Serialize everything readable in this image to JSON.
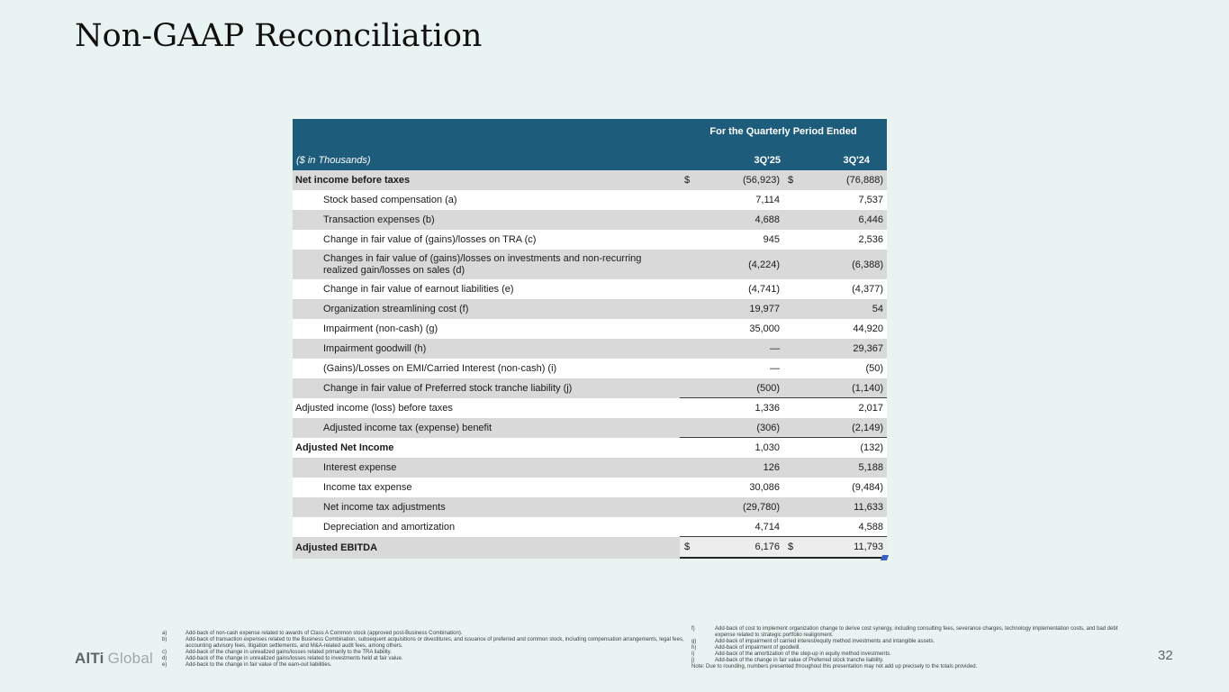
{
  "slide": {
    "title": "Non-GAAP Reconciliation",
    "page_number": "32",
    "logo": {
      "bold": "AlTi",
      "light": "Global"
    }
  },
  "colors": {
    "background": "#E9F4F2",
    "header_teal": "#1E5C7C",
    "row_gray": "#D9D9D9",
    "row_white": "#FFFFFF",
    "blue_mark": "#3B5FC0"
  },
  "table": {
    "header": {
      "period_title": "For the Quarterly Period Ended",
      "units_label": "($ in Thousands)",
      "col1": "3Q'25",
      "col2": "3Q'24"
    },
    "rows": [
      {
        "label": "Net income before taxes",
        "bold": true,
        "indent": false,
        "dollar": true,
        "v1": "(56,923)",
        "v2": "(76,888)",
        "shade": "gray"
      },
      {
        "label": "Stock based compensation (a)",
        "indent": true,
        "v1": "7,114",
        "v2": "7,537",
        "shade": "white"
      },
      {
        "label": "Transaction expenses (b)",
        "indent": true,
        "v1": "4,688",
        "v2": "6,446",
        "shade": "gray"
      },
      {
        "label": "Change in fair value of (gains)/losses on TRA (c)",
        "indent": true,
        "v1": "945",
        "v2": "2,536",
        "shade": "white"
      },
      {
        "label": "Changes in fair value of (gains)/losses on investments and non-recurring",
        "label2": "realized gain/losses on sales (d)",
        "indent": true,
        "tall": true,
        "v1": "(4,224)",
        "v2": "(6,388)",
        "shade": "gray"
      },
      {
        "label": "Change in fair value of earnout liabilities (e)",
        "indent": true,
        "v1": "(4,741)",
        "v2": "(4,377)",
        "shade": "white"
      },
      {
        "label": "Organization streamlining cost (f)",
        "indent": true,
        "v1": "19,977",
        "v2": "54",
        "shade": "gray"
      },
      {
        "label": "Impairment (non-cash) (g)",
        "indent": true,
        "v1": "35,000",
        "v2": "44,920",
        "shade": "white"
      },
      {
        "label": "Impairment goodwill (h)",
        "indent": true,
        "v1": "—",
        "v2": "29,367",
        "shade": "gray"
      },
      {
        "label": "(Gains)/Losses on EMI/Carried Interest (non-cash) (i)",
        "indent": true,
        "v1": "—",
        "v2": "(50)",
        "shade": "white"
      },
      {
        "label": "Change in fair value of Preferred stock tranche liability (j)",
        "indent": true,
        "v1": "(500)",
        "v2": "(1,140)",
        "shade": "gray",
        "underline": true
      },
      {
        "label": "Adjusted income (loss) before taxes",
        "indent": false,
        "v1": "1,336",
        "v2": "2,017",
        "shade": "white"
      },
      {
        "label": "Adjusted income tax (expense) benefit",
        "indent": true,
        "v1": "(306)",
        "v2": "(2,149)",
        "shade": "gray",
        "underline": true
      },
      {
        "label": "Adjusted Net Income",
        "bold": true,
        "indent": false,
        "v1": "1,030",
        "v2": "(132)",
        "shade": "white"
      },
      {
        "label": "Interest expense",
        "indent": true,
        "v1": "126",
        "v2": "5,188",
        "shade": "gray"
      },
      {
        "label": "Income tax expense",
        "indent": true,
        "v1": "30,086",
        "v2": "(9,484)",
        "shade": "white"
      },
      {
        "label": "Net income tax adjustments",
        "indent": true,
        "v1": "(29,780)",
        "v2": "11,633",
        "shade": "gray"
      },
      {
        "label": "Depreciation and amortization",
        "indent": true,
        "v1": "4,714",
        "v2": "4,588",
        "shade": "white",
        "underline": true
      },
      {
        "label": "Adjusted EBITDA",
        "bold": true,
        "indent": false,
        "dollar": true,
        "v1": "6,176",
        "v2": "11,793",
        "shade": "gray",
        "total": true
      }
    ]
  },
  "footnotes": {
    "left": [
      {
        "key": "a)",
        "text": "Add-back of non-cash expense related to awards of Class A Common stock (approved post-Business Combination)."
      },
      {
        "key": "b)",
        "text": "Add-back of transaction expenses related to the Business Combination, subsequent acquisitions or divestitures, and issuance of preferred and common stock, including compensation arrangements, legal fees, accounting advisory fees, litigation settlements, and M&A-related audit fees, among others."
      },
      {
        "key": "c)",
        "text": "Add-back of the change in unrealized gains/losses related primarily to the TRA liability."
      },
      {
        "key": "d)",
        "text": "Add-back of the change in unrealized gains/losses related to investments held at fair value."
      },
      {
        "key": "e)",
        "text": "Add-back to the change in fair value of the earn-out liabilities."
      }
    ],
    "right": [
      {
        "key": "f)",
        "text": "Add-back of cost to implement organization change to derive cost synergy, including consulting fees, severance charges, technology implementation costs, and bad debt expense related to strategic portfolio realignment."
      },
      {
        "key": "g)",
        "text": "Add-back of impairment of carried interest/equity method investments and intangible assets."
      },
      {
        "key": "h)",
        "text": "Add-back of impairment of goodwill."
      },
      {
        "key": "i)",
        "text": "Add-back of the amortization of the step-up in equity method investments."
      },
      {
        "key": "j)",
        "text": "Add-back of the change in fair value of Preferred stock tranche liability."
      }
    ],
    "note": "Note: Due to rounding, numbers presented throughout this presentation may not add up precisely to the totals provided."
  }
}
